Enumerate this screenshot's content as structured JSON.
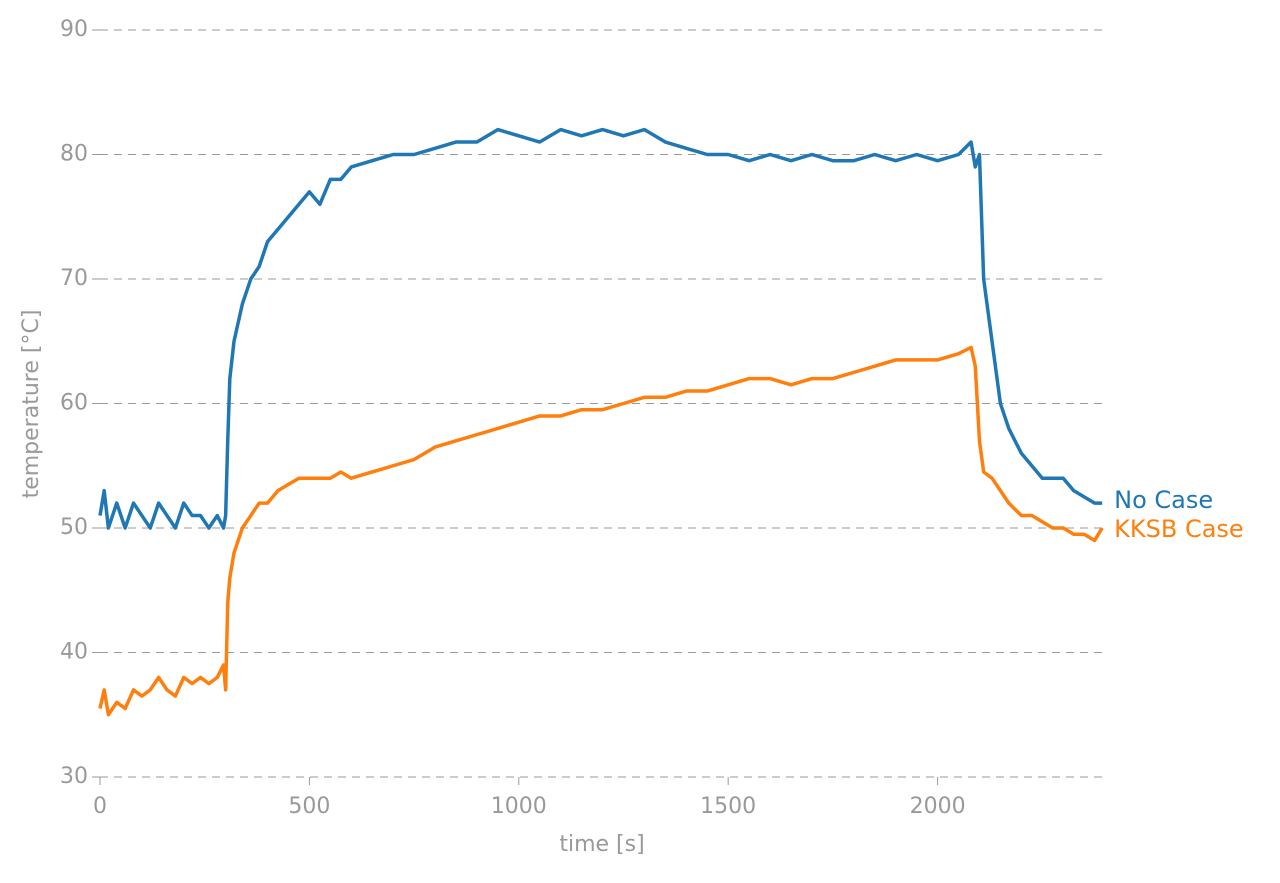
{
  "chart_data": {
    "type": "line",
    "xlabel": "time [s]",
    "ylabel": "temperature [°C]",
    "xlim": [
      0,
      2395
    ],
    "ylim": [
      30,
      90
    ],
    "xticks": [
      0,
      500,
      1000,
      1500,
      2000
    ],
    "yticks": [
      30,
      40,
      50,
      60,
      70,
      80,
      90
    ],
    "grid": true,
    "legend": "inline-right",
    "x": [
      0,
      10,
      20,
      40,
      60,
      80,
      100,
      120,
      140,
      160,
      180,
      200,
      220,
      240,
      260,
      280,
      295,
      300,
      305,
      310,
      320,
      340,
      360,
      380,
      400,
      425,
      450,
      475,
      500,
      525,
      550,
      575,
      600,
      650,
      700,
      750,
      800,
      850,
      900,
      950,
      1000,
      1050,
      1100,
      1150,
      1200,
      1250,
      1300,
      1350,
      1400,
      1450,
      1500,
      1550,
      1600,
      1650,
      1700,
      1750,
      1800,
      1850,
      1900,
      1950,
      2000,
      2050,
      2080,
      2090,
      2100,
      2110,
      2130,
      2150,
      2170,
      2200,
      2225,
      2250,
      2275,
      2300,
      2325,
      2350,
      2375,
      2393
    ],
    "series": [
      {
        "name": "No Case",
        "color": "#1f77b4",
        "values": [
          51,
          53,
          50,
          52,
          50,
          52,
          51,
          50,
          52,
          51,
          50,
          52,
          51,
          51,
          50,
          51,
          50,
          51,
          57,
          62,
          65,
          68,
          70,
          71,
          73,
          74,
          75,
          76,
          77,
          76,
          78,
          78,
          79,
          79.5,
          80,
          80,
          80.5,
          81,
          81,
          82,
          81.5,
          81,
          82,
          81.5,
          82,
          81.5,
          82,
          81,
          80.5,
          80,
          80,
          79.5,
          80,
          79.5,
          80,
          79.5,
          79.5,
          80,
          79.5,
          80,
          79.5,
          80,
          81,
          79,
          80,
          70,
          65,
          60,
          58,
          56,
          55,
          54,
          54,
          54,
          53,
          52.5,
          52,
          52
        ]
      },
      {
        "name": "KKSB Case",
        "color": "#ff7f0e",
        "values": [
          35.5,
          37,
          35,
          36,
          35.5,
          37,
          36.5,
          37,
          38,
          37,
          36.5,
          38,
          37.5,
          38,
          37.5,
          38,
          39,
          37,
          44,
          46,
          48,
          50,
          51,
          52,
          52,
          53,
          53.5,
          54,
          54,
          54,
          54,
          54.5,
          54,
          54.5,
          55,
          55.5,
          56.5,
          57,
          57.5,
          58,
          58.5,
          59,
          59,
          59.5,
          59.5,
          60,
          60.5,
          60.5,
          61,
          61,
          61.5,
          62,
          62,
          61.5,
          62,
          62,
          62.5,
          63,
          63.5,
          63.5,
          63.5,
          64,
          64.5,
          63,
          57,
          54.5,
          54,
          53,
          52,
          51,
          51,
          50.5,
          50,
          50,
          49.5,
          49.5,
          49,
          50
        ]
      }
    ]
  }
}
